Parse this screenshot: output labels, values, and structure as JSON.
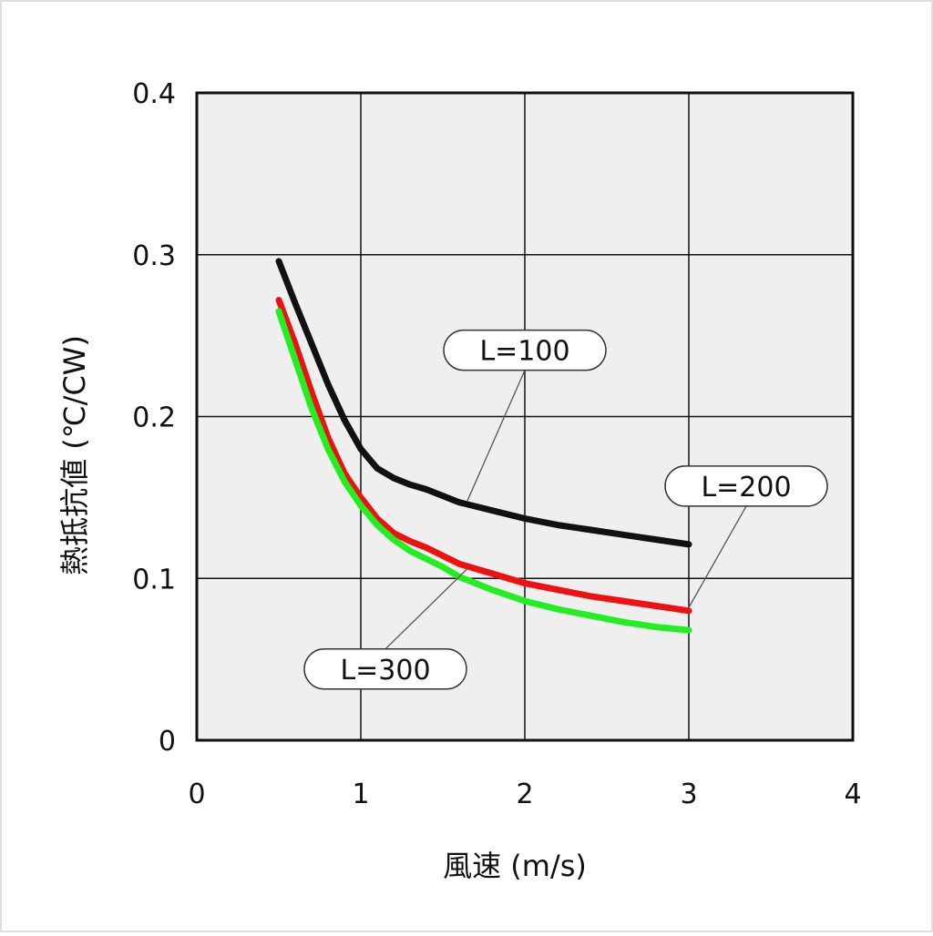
{
  "chart_data": {
    "type": "line",
    "title": "",
    "xlabel": "風速 (m/s)",
    "ylabel": "熱抵抗値 (℃/CW)",
    "xlim": [
      0,
      4
    ],
    "ylim": [
      0,
      0.4
    ],
    "x_ticks": [
      0,
      1,
      2,
      3,
      4
    ],
    "x_tick_labels": [
      "0",
      "1",
      "2",
      "3",
      "4"
    ],
    "y_ticks": [
      0,
      0.1,
      0.2,
      0.3,
      0.4
    ],
    "y_tick_labels": [
      "0",
      "0.1",
      "0.2",
      "0.3",
      "0.4"
    ],
    "grid": true,
    "series": [
      {
        "name": "L=100",
        "color": "#111111",
        "x": [
          0.5,
          0.6,
          0.7,
          0.8,
          0.9,
          1.0,
          1.1,
          1.2,
          1.3,
          1.4,
          1.5,
          1.6,
          1.8,
          2.0,
          2.2,
          2.4,
          2.6,
          2.8,
          3.0
        ],
        "y": [
          0.296,
          0.27,
          0.245,
          0.22,
          0.198,
          0.18,
          0.168,
          0.162,
          0.158,
          0.155,
          0.151,
          0.147,
          0.142,
          0.137,
          0.133,
          0.13,
          0.127,
          0.124,
          0.121
        ]
      },
      {
        "name": "L=200",
        "color": "#ee1111",
        "x": [
          0.5,
          0.6,
          0.7,
          0.8,
          0.9,
          1.0,
          1.1,
          1.2,
          1.3,
          1.4,
          1.5,
          1.6,
          1.8,
          2.0,
          2.2,
          2.4,
          2.6,
          2.8,
          3.0
        ],
        "y": [
          0.272,
          0.245,
          0.215,
          0.187,
          0.165,
          0.15,
          0.137,
          0.128,
          0.123,
          0.119,
          0.114,
          0.109,
          0.103,
          0.097,
          0.093,
          0.089,
          0.086,
          0.083,
          0.08
        ]
      },
      {
        "name": "L=300",
        "color": "#22ee22",
        "x": [
          0.5,
          0.6,
          0.7,
          0.8,
          0.9,
          1.0,
          1.1,
          1.2,
          1.3,
          1.4,
          1.5,
          1.6,
          1.8,
          2.0,
          2.2,
          2.4,
          2.6,
          2.8,
          3.0
        ],
        "y": [
          0.265,
          0.235,
          0.205,
          0.18,
          0.16,
          0.145,
          0.133,
          0.124,
          0.117,
          0.112,
          0.107,
          0.101,
          0.093,
          0.086,
          0.081,
          0.077,
          0.073,
          0.07,
          0.068
        ]
      }
    ],
    "annotations": [
      {
        "text": "L=100",
        "series": "L=100",
        "anchor": [
          1.65,
          0.148
        ],
        "label_at": [
          2.0,
          0.241
        ]
      },
      {
        "text": "L=200",
        "series": "L=200",
        "anchor": [
          3.0,
          0.082
        ],
        "label_at": [
          3.35,
          0.157
        ]
      },
      {
        "text": "L=300",
        "series": "L=300",
        "anchor": [
          1.65,
          0.106
        ],
        "label_at": [
          1.15,
          0.044
        ]
      }
    ]
  }
}
